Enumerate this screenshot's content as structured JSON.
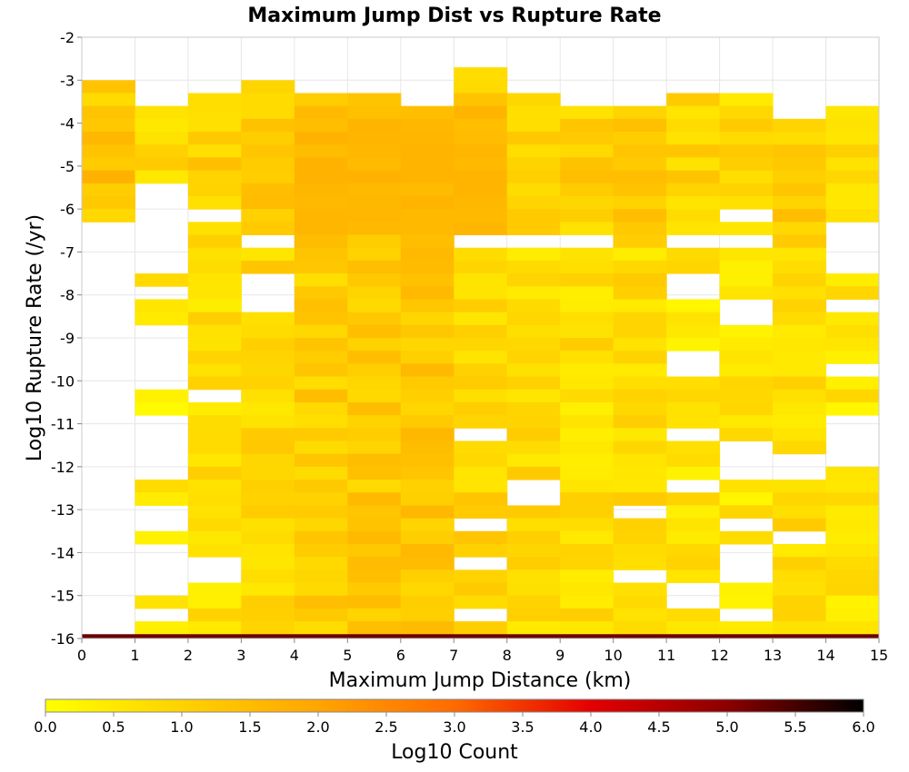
{
  "chart_data": {
    "type": "heatmap",
    "title": "Maximum Jump Dist vs Rupture Rate",
    "xlabel": "Maximum Jump Distance (km)",
    "ylabel": "Log10 Rupture Rate (/yr)",
    "xlim": [
      0,
      15
    ],
    "ylim": [
      -16,
      -2
    ],
    "x_ticks": [
      0,
      1,
      2,
      3,
      4,
      5,
      6,
      7,
      8,
      9,
      10,
      11,
      12,
      13,
      14,
      15
    ],
    "y_ticks": [
      -2,
      -3,
      -4,
      -5,
      -6,
      -7,
      -8,
      -9,
      -10,
      -11,
      -12,
      -13,
      -14,
      -15,
      -16
    ],
    "x_bin_width": 1,
    "y_bin_width": 0.3,
    "color_scale": {
      "label": "Log10 Count",
      "min": 0.0,
      "max": 6.0,
      "ticks": [
        "0.0",
        "0.5",
        "1.0",
        "1.5",
        "2.0",
        "2.5",
        "3.0",
        "3.5",
        "4.0",
        "4.5",
        "5.0",
        "5.5",
        "6.0"
      ],
      "stops": [
        "#ffff00",
        "#ffd200",
        "#ffa500",
        "#ff6a00",
        "#e30000",
        "#8b0000",
        "#000000"
      ]
    },
    "columns": [
      {
        "x": 0,
        "y_top": -3.0,
        "y_bottom": -6.3,
        "zero_bins": [
          -6.6,
          -6.9,
          -7.2,
          -7.5,
          -7.8,
          -8.4,
          -8.7,
          -9.0,
          -9.9,
          -10.2,
          -11.1,
          -11.4,
          -11.7,
          -12.0,
          -13.2,
          -13.5,
          -14.1,
          -14.4,
          -15.0,
          -15.3,
          -15.6
        ],
        "level": 1.0
      },
      {
        "x": 1,
        "y_top": -3.6,
        "y_bottom": -15.9,
        "zero_bins": [
          -5.7,
          -6.0,
          -6.3,
          -6.6,
          -6.9,
          -7.2,
          -7.5,
          -8.1,
          -9.0,
          -9.3,
          -9.6,
          -9.9,
          -10.2,
          -11.1,
          -11.4,
          -11.7,
          -12.0,
          -12.3,
          -13.2,
          -13.5,
          -14.1,
          -14.4,
          -14.7,
          -15.0,
          -15.6
        ],
        "level": 0.5
      },
      {
        "x": 2,
        "y_top": -3.3,
        "y_bottom": -15.9,
        "zero_bins": [
          -6.3,
          -10.5,
          -14.4,
          -14.7
        ],
        "level": 0.7
      },
      {
        "x": 3,
        "y_top": -3.0,
        "y_bottom": -15.9,
        "zero_bins": [
          -6.9,
          -7.8,
          -8.1,
          -8.4
        ],
        "level": 0.9
      },
      {
        "x": 4,
        "y_top": -3.3,
        "y_bottom": -15.9,
        "zero_bins": [],
        "level": 1.1
      },
      {
        "x": 5,
        "y_top": -3.3,
        "y_bottom": -15.9,
        "zero_bins": [],
        "level": 1.2
      },
      {
        "x": 6,
        "y_top": -3.6,
        "y_bottom": -15.9,
        "zero_bins": [],
        "level": 1.25
      },
      {
        "x": 7,
        "y_top": -2.7,
        "y_bottom": -15.9,
        "zero_bins": [
          -6.9,
          -11.4,
          -13.5,
          -14.4,
          -15.6
        ],
        "level": 0.9
      },
      {
        "x": 8,
        "y_top": -3.3,
        "y_bottom": -15.9,
        "zero_bins": [
          -6.9,
          -12.6,
          -12.9
        ],
        "level": 0.8
      },
      {
        "x": 9,
        "y_top": -3.6,
        "y_bottom": -15.9,
        "zero_bins": [
          -6.9
        ],
        "level": 0.75
      },
      {
        "x": 10,
        "y_top": -3.6,
        "y_bottom": -15.9,
        "zero_bins": [
          -13.2,
          -14.7
        ],
        "level": 0.8
      },
      {
        "x": 11,
        "y_top": -3.3,
        "y_bottom": -15.9,
        "zero_bins": [
          -6.9,
          -7.8,
          -8.1,
          -9.6,
          -9.9,
          -11.4,
          -12.6,
          -15.0,
          -15.3
        ],
        "level": 0.6
      },
      {
        "x": 12,
        "y_top": -3.3,
        "y_bottom": -15.9,
        "zero_bins": [
          -6.3,
          -6.9,
          -8.4,
          -8.7,
          -11.7,
          -12.0,
          -12.3,
          -13.5,
          -14.1,
          -14.4,
          -14.7,
          -15.6
        ],
        "level": 0.6
      },
      {
        "x": 13,
        "y_top": -3.9,
        "y_bottom": -15.9,
        "zero_bins": [
          -12.0,
          -12.3,
          -13.8
        ],
        "level": 0.8
      },
      {
        "x": 14,
        "y_top": -3.6,
        "y_bottom": -15.9,
        "zero_bins": [
          -6.6,
          -6.9,
          -7.2,
          -7.5,
          -8.4,
          -9.9,
          -11.1,
          -11.4,
          -11.7,
          -12.0
        ],
        "level": 0.6
      }
    ],
    "bottom_row": {
      "y": -15.9,
      "level": 5.0
    },
    "hot_region": {
      "x": [
        4,
        8
      ],
      "y": [
        -6.3,
        -3.9
      ],
      "peak_level": 1.7
    }
  }
}
